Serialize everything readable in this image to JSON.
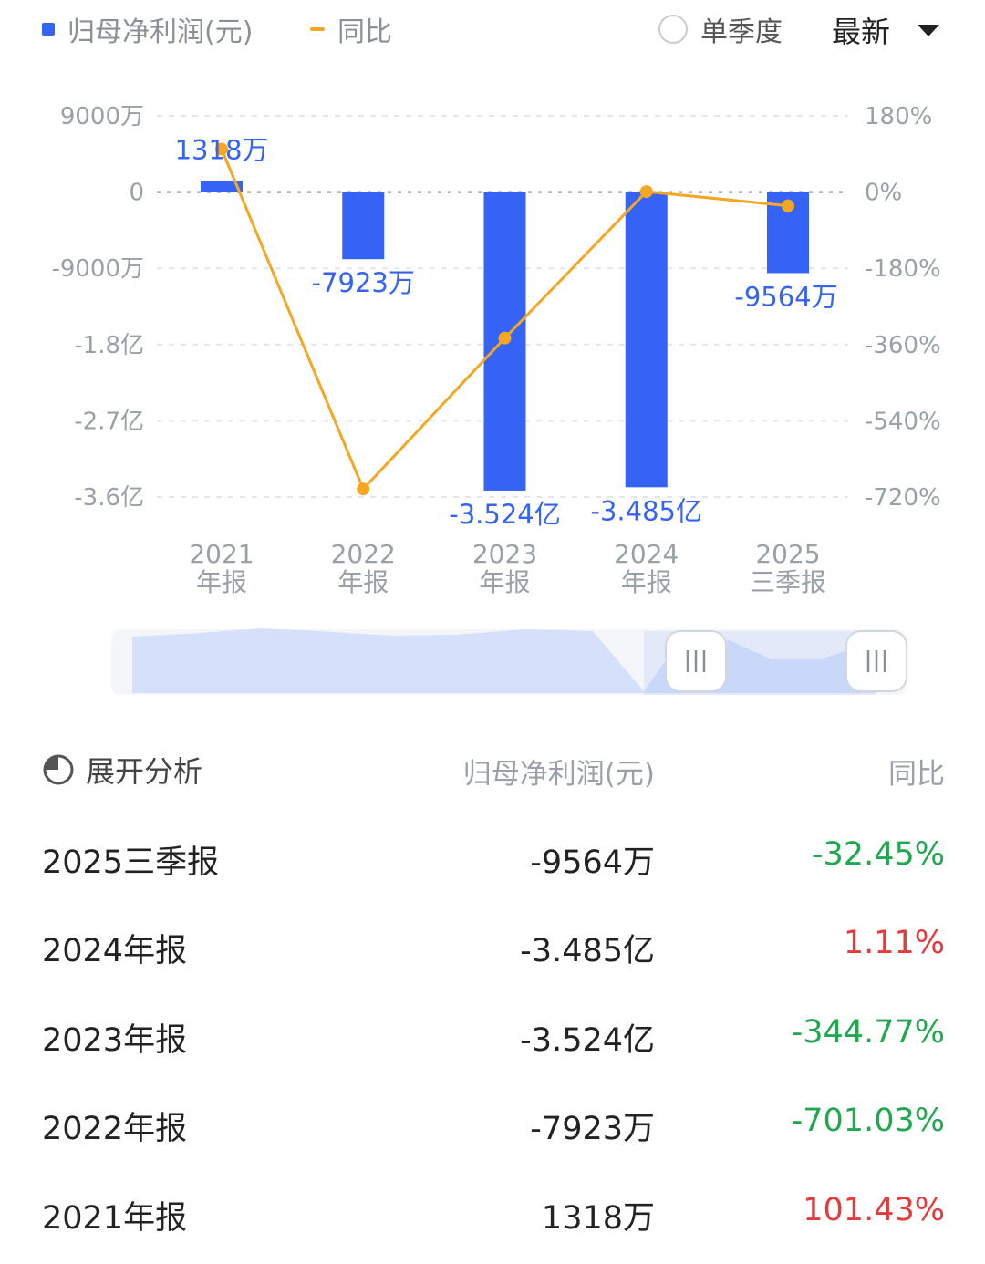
{
  "legend": {
    "bar_label": "归母净利润(元)",
    "line_label": "同比"
  },
  "controls": {
    "quarter_label": "单季度",
    "sort_label": "最新"
  },
  "colors": {
    "bar": "#3563f5",
    "line": "#f5a623",
    "positive": "#e5393a",
    "negative": "#1fa84f"
  },
  "chart_data": {
    "type": "bar",
    "categories": [
      "2021\n年报",
      "2022\n年报",
      "2023\n年报",
      "2024\n年报",
      "2025\n三季报"
    ],
    "series": [
      {
        "name": "归母净利润(元)",
        "type": "bar",
        "values": [
          13180000,
          -79230000,
          -352400000,
          -348500000,
          -95640000
        ],
        "labels": [
          "1318万",
          "-7923万",
          "-3.524亿",
          "-3.485亿",
          "-9564万"
        ]
      },
      {
        "name": "同比",
        "type": "line",
        "axis": "right",
        "values": [
          101.43,
          -701.03,
          -344.77,
          1.11,
          -32.45
        ]
      }
    ],
    "y_left": {
      "ticks": [
        90000000,
        0,
        -90000000,
        -180000000,
        -270000000,
        -360000000
      ],
      "tick_labels": [
        "9000万",
        "0",
        "-9000万",
        "-1.8亿",
        "-2.7亿",
        "-3.6亿"
      ],
      "range": [
        -360000000,
        90000000
      ]
    },
    "y_right": {
      "ticks": [
        180,
        0,
        -180,
        -360,
        -540,
        -720
      ],
      "tick_labels": [
        "180%",
        "0%",
        "-180%",
        "-360%",
        "-540%",
        "-720%"
      ],
      "range": [
        -720,
        180
      ]
    },
    "grid": true
  },
  "table": {
    "header": {
      "analysis_label": "展开分析",
      "value_label": "归母净利润(元)",
      "yoy_label": "同比"
    },
    "rows": [
      {
        "period": "2025三季报",
        "value": "-9564万",
        "yoy": "-32.45%",
        "trend": "negative"
      },
      {
        "period": "2024年报",
        "value": "-3.485亿",
        "yoy": "1.11%",
        "trend": "positive"
      },
      {
        "period": "2023年报",
        "value": "-3.524亿",
        "yoy": "-344.77%",
        "trend": "negative"
      },
      {
        "period": "2022年报",
        "value": "-7923万",
        "yoy": "-701.03%",
        "trend": "negative"
      },
      {
        "period": "2021年报",
        "value": "1318万",
        "yoy": "101.43%",
        "trend": "positive"
      }
    ]
  }
}
